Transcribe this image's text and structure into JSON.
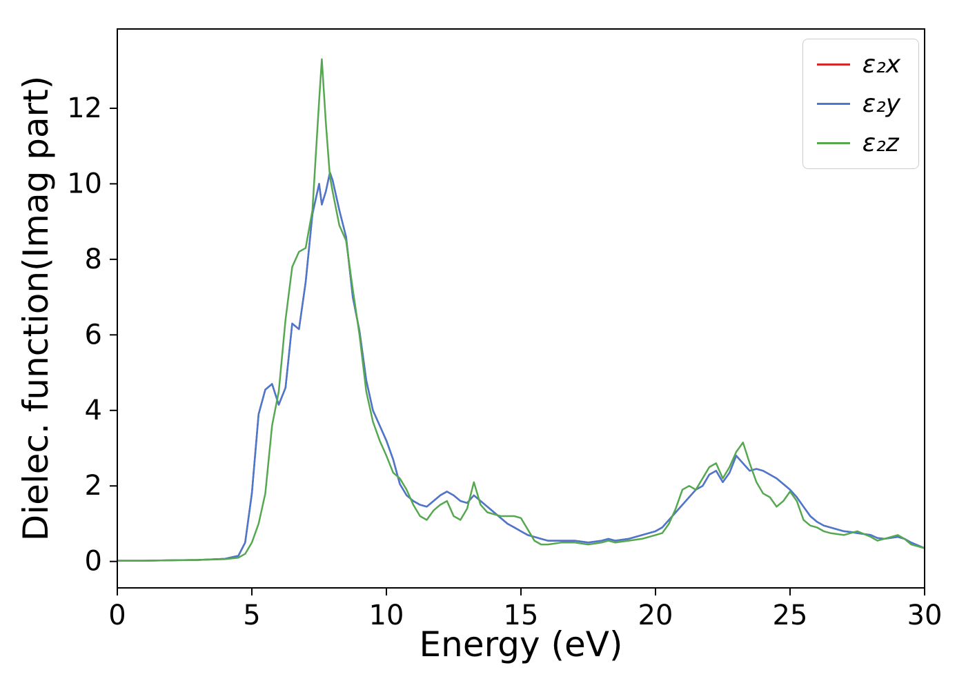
{
  "figure": {
    "background": "#ffffff"
  },
  "chart_data": {
    "type": "line",
    "title": "",
    "xlabel": "Energy (eV)",
    "ylabel": "Dielec. function(Imag part)",
    "xlim": [
      0,
      30
    ],
    "ylim": [
      -0.7,
      14.1
    ],
    "xticks": [
      0,
      5,
      10,
      15,
      20,
      25,
      30
    ],
    "yticks": [
      0,
      2,
      4,
      6,
      8,
      10,
      12
    ],
    "grid": false,
    "legend_position": "upper right",
    "axis_color": "#000000",
    "x": [
      0,
      1,
      2,
      3,
      4,
      4.5,
      4.75,
      5,
      5.25,
      5.5,
      5.75,
      6,
      6.25,
      6.5,
      6.75,
      7,
      7.25,
      7.5,
      7.6,
      7.75,
      7.9,
      8,
      8.25,
      8.5,
      8.75,
      9,
      9.25,
      9.5,
      9.75,
      10,
      10.25,
      10.5,
      10.75,
      11,
      11.25,
      11.5,
      11.75,
      12,
      12.25,
      12.5,
      12.75,
      13,
      13.25,
      13.5,
      13.75,
      14,
      14.25,
      14.5,
      14.75,
      15,
      15.25,
      15.5,
      15.75,
      16,
      16.5,
      17,
      17.5,
      18,
      18.25,
      18.5,
      19,
      19.5,
      20,
      20.25,
      20.5,
      20.75,
      21,
      21.25,
      21.5,
      21.75,
      22,
      22.25,
      22.5,
      22.75,
      23,
      23.25,
      23.5,
      23.75,
      24,
      24.25,
      24.5,
      24.75,
      25,
      25.25,
      25.5,
      25.75,
      26,
      26.25,
      26.5,
      27,
      27.25,
      27.5,
      28,
      28.25,
      28.5,
      29,
      29.25,
      29.5,
      30
    ],
    "series": [
      {
        "name": "ε₂x",
        "color": "#d62728",
        "values": [
          0.02,
          0.02,
          0.03,
          0.04,
          0.07,
          0.15,
          0.5,
          1.8,
          3.9,
          4.55,
          4.7,
          4.15,
          4.6,
          6.3,
          6.15,
          7.4,
          9.2,
          10.0,
          9.45,
          9.8,
          10.3,
          10.1,
          9.3,
          8.6,
          7.0,
          6.1,
          4.8,
          4.0,
          3.6,
          3.2,
          2.7,
          2.05,
          1.75,
          1.6,
          1.5,
          1.45,
          1.6,
          1.75,
          1.85,
          1.75,
          1.6,
          1.55,
          1.75,
          1.6,
          1.45,
          1.3,
          1.15,
          1.0,
          0.9,
          0.8,
          0.7,
          0.65,
          0.6,
          0.55,
          0.55,
          0.55,
          0.5,
          0.55,
          0.6,
          0.55,
          0.6,
          0.7,
          0.8,
          0.9,
          1.1,
          1.3,
          1.5,
          1.7,
          1.9,
          2.0,
          2.3,
          2.4,
          2.1,
          2.35,
          2.8,
          2.6,
          2.4,
          2.45,
          2.4,
          2.3,
          2.2,
          2.05,
          1.9,
          1.7,
          1.45,
          1.2,
          1.05,
          0.95,
          0.9,
          0.8,
          0.78,
          0.75,
          0.7,
          0.62,
          0.6,
          0.65,
          0.6,
          0.5,
          0.35
        ]
      },
      {
        "name": "ε₂y",
        "color": "#4878cf",
        "values": [
          0.02,
          0.02,
          0.03,
          0.04,
          0.07,
          0.15,
          0.5,
          1.8,
          3.9,
          4.55,
          4.7,
          4.15,
          4.6,
          6.3,
          6.15,
          7.4,
          9.2,
          10.0,
          9.45,
          9.8,
          10.3,
          10.1,
          9.3,
          8.6,
          7.0,
          6.1,
          4.8,
          4.0,
          3.6,
          3.2,
          2.7,
          2.05,
          1.75,
          1.6,
          1.5,
          1.45,
          1.6,
          1.75,
          1.85,
          1.75,
          1.6,
          1.55,
          1.75,
          1.6,
          1.45,
          1.3,
          1.15,
          1.0,
          0.9,
          0.8,
          0.7,
          0.65,
          0.6,
          0.55,
          0.55,
          0.55,
          0.5,
          0.55,
          0.6,
          0.55,
          0.6,
          0.7,
          0.8,
          0.9,
          1.1,
          1.3,
          1.5,
          1.7,
          1.9,
          2.0,
          2.3,
          2.4,
          2.1,
          2.35,
          2.8,
          2.6,
          2.4,
          2.45,
          2.4,
          2.3,
          2.2,
          2.05,
          1.9,
          1.7,
          1.45,
          1.2,
          1.05,
          0.95,
          0.9,
          0.8,
          0.78,
          0.75,
          0.7,
          0.62,
          0.6,
          0.65,
          0.6,
          0.5,
          0.35
        ]
      },
      {
        "name": "ε₂z",
        "color": "#55a84f",
        "values": [
          0.02,
          0.02,
          0.03,
          0.04,
          0.06,
          0.1,
          0.2,
          0.5,
          1.0,
          1.8,
          3.6,
          4.5,
          6.4,
          7.8,
          8.2,
          8.3,
          9.3,
          12.2,
          13.3,
          11.6,
          10.2,
          9.8,
          8.9,
          8.5,
          7.2,
          6.0,
          4.5,
          3.7,
          3.2,
          2.8,
          2.35,
          2.2,
          1.9,
          1.5,
          1.2,
          1.1,
          1.35,
          1.5,
          1.6,
          1.2,
          1.1,
          1.4,
          2.1,
          1.5,
          1.3,
          1.25,
          1.2,
          1.2,
          1.2,
          1.15,
          0.85,
          0.55,
          0.45,
          0.45,
          0.5,
          0.5,
          0.45,
          0.5,
          0.55,
          0.5,
          0.55,
          0.6,
          0.7,
          0.75,
          1.0,
          1.4,
          1.9,
          2.0,
          1.9,
          2.2,
          2.5,
          2.6,
          2.2,
          2.5,
          2.9,
          3.15,
          2.6,
          2.1,
          1.8,
          1.7,
          1.45,
          1.6,
          1.85,
          1.6,
          1.1,
          0.95,
          0.9,
          0.8,
          0.75,
          0.7,
          0.75,
          0.8,
          0.65,
          0.55,
          0.6,
          0.7,
          0.6,
          0.45,
          0.35
        ]
      }
    ]
  }
}
